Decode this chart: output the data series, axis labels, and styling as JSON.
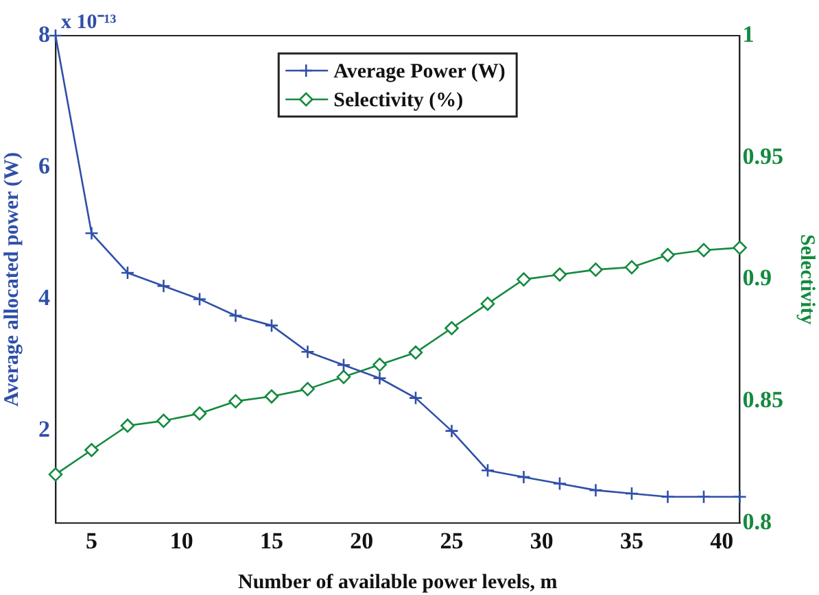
{
  "chart_data": {
    "type": "line",
    "xlabel": "Number of available power levels, m",
    "ylabel": "Average allocated power (W)",
    "y2label": "Selectivity",
    "annotations": [
      "x 10⁻¹³"
    ],
    "x": [
      3,
      5,
      7,
      9,
      11,
      13,
      15,
      17,
      19,
      21,
      23,
      25,
      27,
      29,
      31,
      33,
      35,
      37,
      39,
      41
    ],
    "xlim": [
      3,
      41
    ],
    "xticks": [
      5,
      10,
      15,
      20,
      25,
      30,
      35,
      40
    ],
    "ylim": [
      0.6,
      8
    ],
    "yticks": [
      2,
      4,
      6,
      8
    ],
    "y2lim": [
      0.8,
      1
    ],
    "y2ticks": [
      0.8,
      0.85,
      0.9,
      0.95,
      1
    ],
    "legend": "top",
    "grid": false,
    "line_style": "solid",
    "series": [
      {
        "name": "Average Power (W)",
        "color": "#2f4fa8",
        "marker": "cross",
        "values": [
          8,
          5,
          4.4,
          4.2,
          4.0,
          3.75,
          3.6,
          3.2,
          3.0,
          2.8,
          2.5,
          2.0,
          1.4,
          1.3,
          1.2,
          1.1,
          1.05,
          1.0,
          1.0,
          1.0
        ]
      },
      {
        "name": "Selectivity (%)",
        "color": "#138a3e",
        "marker": "diamond",
        "axis": "y2",
        "values": [
          0.82,
          0.83,
          0.84,
          0.842,
          0.845,
          0.85,
          0.852,
          0.855,
          0.86,
          0.865,
          0.87,
          0.88,
          0.89,
          0.9,
          0.902,
          0.904,
          0.905,
          0.91,
          0.912,
          0.913
        ]
      }
    ]
  }
}
